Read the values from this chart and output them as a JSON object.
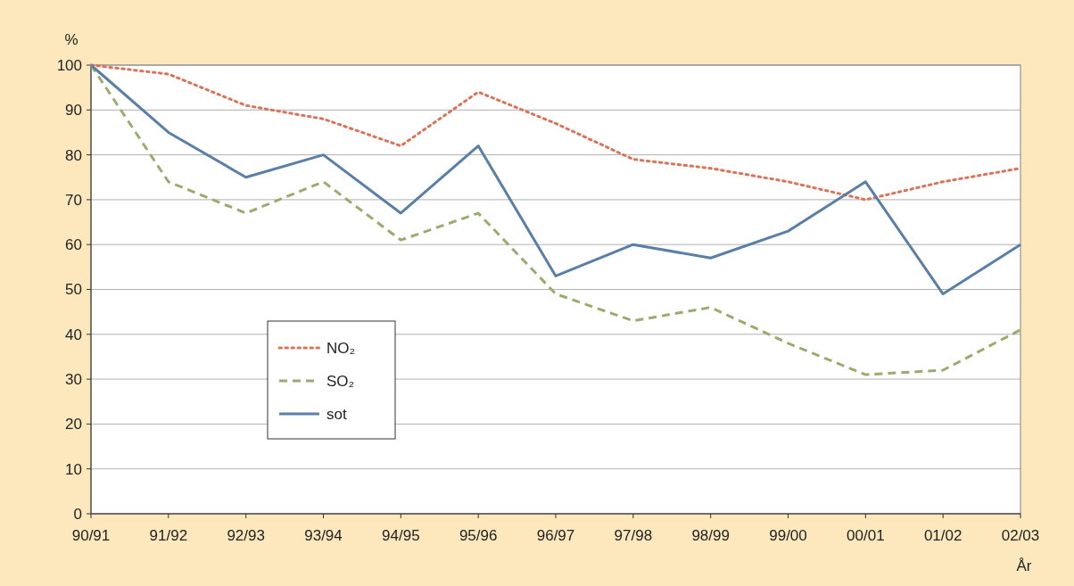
{
  "chart_data": {
    "type": "line",
    "ylabel": "%",
    "xlabel": "År",
    "categories": [
      "90/91",
      "91/92",
      "92/93",
      "93/94",
      "94/95",
      "95/96",
      "96/97",
      "97/98",
      "98/99",
      "99/00",
      "00/01",
      "01/02",
      "02/03"
    ],
    "series": [
      {
        "name": "NO₂",
        "color": "#d9745a",
        "line_style": "dotted",
        "values": [
          100,
          98,
          91,
          88,
          82,
          94,
          87,
          79,
          77,
          74,
          70,
          74,
          77
        ]
      },
      {
        "name": "SO₂",
        "color": "#9aab6e",
        "line_style": "dashed",
        "values": [
          100,
          74,
          67,
          74,
          61,
          67,
          49,
          43,
          46,
          38,
          31,
          32,
          41
        ]
      },
      {
        "name": "sot",
        "color": "#5a7fa6",
        "line_style": "solid",
        "values": [
          100,
          85,
          75,
          80,
          67,
          82,
          53,
          60,
          57,
          63,
          74,
          49,
          60
        ]
      }
    ],
    "ylim": [
      0,
      100
    ],
    "yticks": [
      0,
      10,
      20,
      30,
      40,
      50,
      60,
      70,
      80,
      90,
      100
    ],
    "grid": "y",
    "legend": "bottom left"
  }
}
